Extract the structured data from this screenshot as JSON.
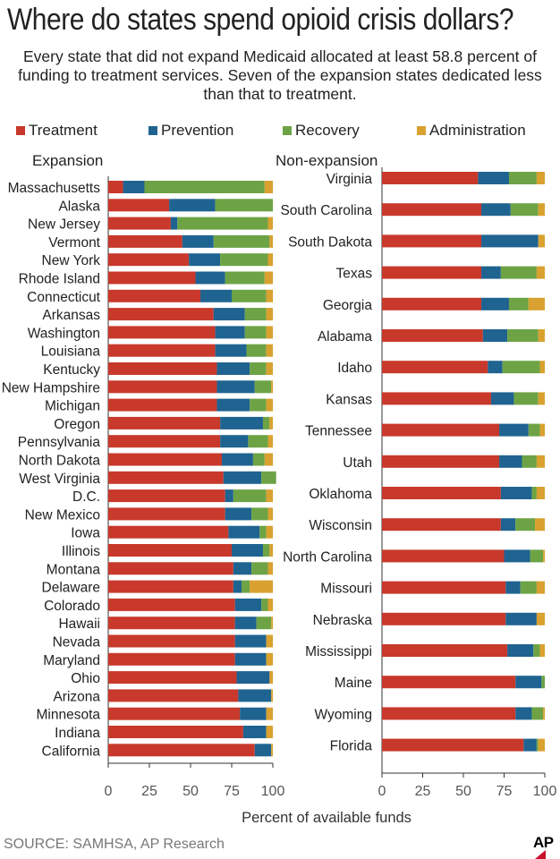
{
  "title": "Where do states spend opioid crisis dollars?",
  "subtitle": [
    "Every state that did not expand Medicaid allocated at least 58.8 percent of",
    "funding to treatment services. Seven of the expansion states dedicated less",
    "than that to treatment."
  ],
  "legend": [
    {
      "label": "Treatment",
      "color": "#c8392b"
    },
    {
      "label": "Prevention",
      "color": "#1f6391"
    },
    {
      "label": "Recovery",
      "color": "#6da345"
    },
    {
      "label": "Administration",
      "color": "#d9a12f"
    }
  ],
  "source": "SOURCE: SAMHSA, AP Research",
  "logo": "AP",
  "chart_data": [
    {
      "type": "bar",
      "stacked": true,
      "orientation": "horizontal",
      "title": "Expansion",
      "xlabel": "Percent of available funds",
      "xlim": [
        0,
        100
      ],
      "xticks": [
        "0",
        "25",
        "50",
        "75",
        "100"
      ],
      "categories": [
        "Massachusetts",
        "Alaska",
        "New Jersey",
        "Vermont",
        "New York",
        "Rhode Island",
        "Connecticut",
        "Arkansas",
        "Washington",
        "Louisiana",
        "Kentucky",
        "New Hampshire",
        "Michigan",
        "Oregon",
        "Pennsylvania",
        "North Dakota",
        "West Virginia",
        "D.C.",
        "New Mexico",
        "Iowa",
        "Illinois",
        "Montana",
        "Delaware",
        "Colorado",
        "Hawaii",
        "Nevada",
        "Maryland",
        "Ohio",
        "Arizona",
        "Minnesota",
        "Indiana",
        "California"
      ],
      "series": [
        {
          "name": "Treatment",
          "values": [
            9,
            37,
            38,
            45,
            49,
            53,
            56,
            64,
            65,
            65,
            66,
            66,
            66,
            68,
            68,
            69,
            70,
            71,
            71,
            73,
            75,
            76,
            76,
            77,
            77,
            77,
            77,
            78,
            79,
            80,
            82,
            89
          ]
        },
        {
          "name": "Prevention",
          "values": [
            13,
            28,
            4,
            19,
            19,
            18,
            19,
            19,
            18,
            19,
            20,
            23,
            20,
            26,
            17,
            19,
            23,
            5,
            16,
            19,
            19,
            11,
            5,
            16,
            13,
            19,
            19,
            20,
            20,
            16,
            14,
            10
          ]
        },
        {
          "name": "Recovery",
          "values": [
            73,
            35,
            55,
            34,
            29,
            24,
            21,
            13,
            13,
            12,
            10,
            10,
            10,
            4,
            12,
            7,
            9,
            20,
            10,
            4,
            4,
            10,
            5,
            4,
            9,
            0,
            0,
            0,
            0,
            0,
            0,
            0
          ]
        },
        {
          "name": "Administration",
          "values": [
            5,
            0,
            3,
            2,
            3,
            5,
            4,
            4,
            4,
            4,
            4,
            1,
            4,
            2,
            3,
            5,
            0,
            4,
            3,
            4,
            2,
            3,
            14,
            3,
            1,
            4,
            4,
            2,
            1,
            4,
            4,
            1
          ]
        }
      ]
    },
    {
      "type": "bar",
      "stacked": true,
      "orientation": "horizontal",
      "title": "Non-expansion",
      "xlabel": "Percent of available funds",
      "xlim": [
        0,
        100
      ],
      "xticks": [
        "0",
        "25",
        "50",
        "75",
        "100"
      ],
      "categories": [
        "Virginia",
        "South Carolina",
        "South Dakota",
        "Texas",
        "Georgia",
        "Alabama",
        "Idaho",
        "Kansas",
        "Tennessee",
        "Utah",
        "Oklahoma",
        "Wisconsin",
        "North Carolina",
        "Missouri",
        "Nebraska",
        "Mississippi",
        "Maine",
        "Wyoming",
        "Florida"
      ],
      "series": [
        {
          "name": "Treatment",
          "values": [
            59,
            61,
            61,
            61,
            61,
            62,
            65,
            67,
            72,
            72,
            73,
            73,
            75,
            76,
            76,
            77,
            82,
            82,
            87
          ]
        },
        {
          "name": "Prevention",
          "values": [
            19,
            18,
            35,
            12,
            17,
            15,
            9,
            14,
            18,
            14,
            19,
            9,
            16,
            9,
            19,
            16,
            16,
            10,
            8
          ]
        },
        {
          "name": "Recovery",
          "values": [
            17,
            17,
            0,
            22,
            12,
            19,
            23,
            15,
            7,
            9,
            3,
            12,
            8,
            10,
            0,
            4,
            2,
            7,
            1
          ]
        },
        {
          "name": "Administration",
          "values": [
            5,
            4,
            4,
            5,
            10,
            4,
            3,
            4,
            3,
            5,
            5,
            6,
            1,
            5,
            5,
            3,
            0,
            1,
            4
          ]
        }
      ]
    }
  ]
}
